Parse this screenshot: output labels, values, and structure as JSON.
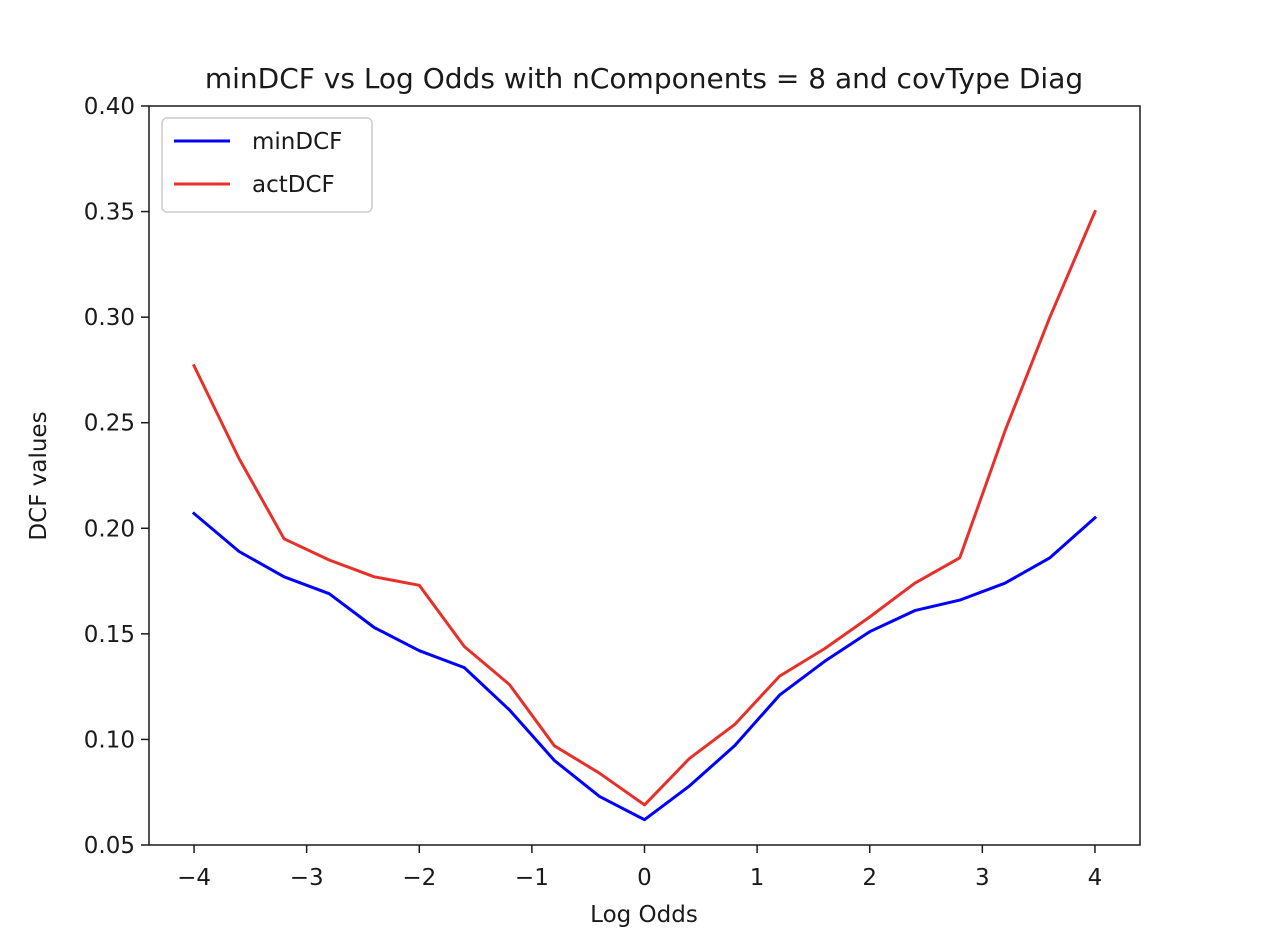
{
  "chart_data": {
    "type": "line",
    "title": "minDCF vs Log Odds with nComponents = 8 and covType Diag",
    "xlabel": "Log Odds",
    "ylabel": "DCF values",
    "xlim": [
      -4.4,
      4.4
    ],
    "ylim": [
      0.05,
      0.4
    ],
    "xticks": [
      -4,
      -3,
      -2,
      -1,
      0,
      1,
      2,
      3,
      4
    ],
    "xtick_labels": [
      "−4",
      "−3",
      "−2",
      "−1",
      "0",
      "1",
      "2",
      "3",
      "4"
    ],
    "yticks": [
      0.05,
      0.1,
      0.15,
      0.2,
      0.25,
      0.3,
      0.35,
      0.4
    ],
    "ytick_labels": [
      "0.05",
      "0.10",
      "0.15",
      "0.20",
      "0.25",
      "0.30",
      "0.35",
      "0.40"
    ],
    "grid": false,
    "legend_position": "top-left",
    "x": [
      -4.0,
      -3.6,
      -3.2,
      -2.8,
      -2.4,
      -2.0,
      -1.6,
      -1.2,
      -0.8,
      -0.4,
      0.0,
      0.4,
      0.8,
      1.2,
      1.6,
      2.0,
      2.4,
      2.8,
      3.2,
      3.6,
      4.0
    ],
    "series": [
      {
        "name": "minDCF",
        "color": "#0000ff",
        "values": [
          0.207,
          0.189,
          0.177,
          0.169,
          0.153,
          0.142,
          0.134,
          0.114,
          0.09,
          0.073,
          0.062,
          0.078,
          0.097,
          0.121,
          0.137,
          0.151,
          0.161,
          0.166,
          0.174,
          0.186,
          0.205
        ]
      },
      {
        "name": "actDCF",
        "color": "#e8302a",
        "values": [
          0.277,
          0.233,
          0.195,
          0.185,
          0.177,
          0.173,
          0.144,
          0.126,
          0.097,
          0.084,
          0.069,
          0.091,
          0.107,
          0.13,
          0.143,
          0.158,
          0.174,
          0.186,
          0.246,
          0.3,
          0.35
        ]
      }
    ]
  }
}
